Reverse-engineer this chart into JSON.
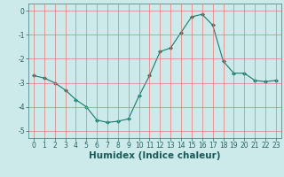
{
  "x": [
    0,
    1,
    2,
    3,
    4,
    5,
    6,
    7,
    8,
    9,
    10,
    11,
    12,
    13,
    14,
    15,
    16,
    17,
    18,
    19,
    20,
    21,
    22,
    23
  ],
  "y": [
    -2.7,
    -2.8,
    -3.0,
    -3.3,
    -3.7,
    -4.0,
    -4.55,
    -4.65,
    -4.6,
    -4.5,
    -3.55,
    -2.7,
    -1.7,
    -1.55,
    -0.9,
    -0.25,
    -0.15,
    -0.6,
    -2.1,
    -2.6,
    -2.6,
    -2.9,
    -2.95,
    -2.9
  ],
  "line_color": "#1a7a6e",
  "marker": "D",
  "marker_size": 2,
  "bg_color": "#cceaea",
  "grid_color": "#e87878",
  "xlabel": "Humidex (Indice chaleur)",
  "xlim": [
    -0.5,
    23.5
  ],
  "ylim": [
    -5.3,
    0.3
  ],
  "yticks": [
    0,
    -1,
    -2,
    -3,
    -4,
    -5
  ],
  "xticks": [
    0,
    1,
    2,
    3,
    4,
    5,
    6,
    7,
    8,
    9,
    10,
    11,
    12,
    13,
    14,
    15,
    16,
    17,
    18,
    19,
    20,
    21,
    22,
    23
  ],
  "tick_fontsize": 5.5,
  "xlabel_fontsize": 7.5,
  "xlabel_fontweight": "bold",
  "tick_color": "#2a6060",
  "xlabel_color": "#1a5a5a"
}
